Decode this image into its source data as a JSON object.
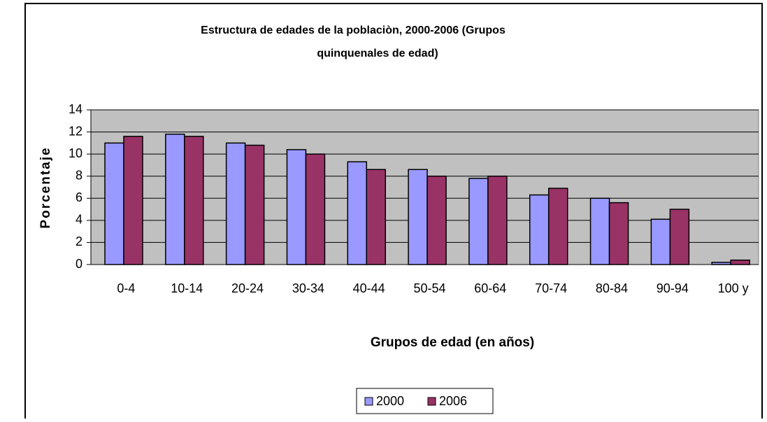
{
  "chart_data": {
    "type": "bar",
    "title": [
      "Estructura de edades de la poblaciòn, 2000-2006 (Grupos",
      "quinquenales de edad)"
    ],
    "xlabel": "Grupos de edad (en años)",
    "ylabel": "Porcentaje",
    "categories": [
      "0-4",
      "10-14",
      "20-24",
      "30-34",
      "40-44",
      "50-54",
      "60-64",
      "70-74",
      "80-84",
      "90-94",
      "100 y"
    ],
    "series": [
      {
        "name": "2000",
        "color": "#9999ff",
        "values": [
          11.0,
          11.8,
          11.0,
          10.4,
          9.3,
          8.6,
          7.8,
          6.3,
          6.0,
          4.1,
          0.2
        ]
      },
      {
        "name": "2006",
        "color": "#993366",
        "values": [
          11.6,
          11.6,
          10.8,
          10.0,
          8.6,
          8.0,
          8.0,
          6.9,
          5.6,
          5.0,
          0.4
        ]
      }
    ],
    "ylim": [
      0,
      14
    ],
    "yticks": [
      0,
      2,
      4,
      6,
      8,
      10,
      12,
      14
    ],
    "grid": true,
    "legend": "bottom"
  }
}
